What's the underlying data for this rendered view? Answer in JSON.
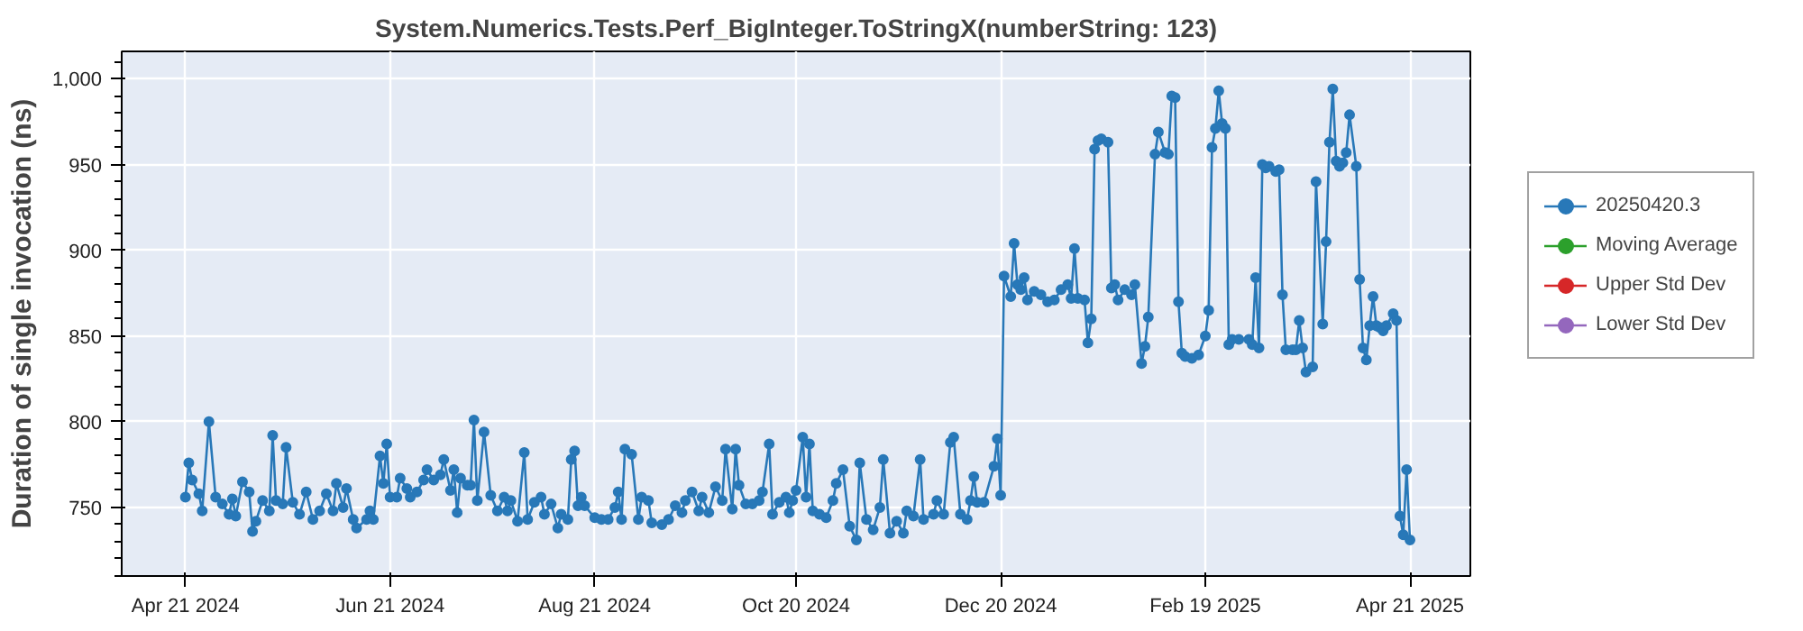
{
  "chart_data": {
    "type": "line",
    "title": "System.Numerics.Tests.Perf_BigInteger.ToStringX(numberString: 123)",
    "ylabel": "Duration of single invocation (ns)",
    "x": [
      "2024-04-21",
      "2024-04-22",
      "2024-04-23",
      "2024-04-25",
      "2024-04-26",
      "2024-04-28",
      "2024-04-30",
      "2024-05-02",
      "2024-05-04",
      "2024-05-05",
      "2024-05-06",
      "2024-05-08",
      "2024-05-10",
      "2024-05-11",
      "2024-05-12",
      "2024-05-14",
      "2024-05-16",
      "2024-05-17",
      "2024-05-18",
      "2024-05-20",
      "2024-05-21",
      "2024-05-23",
      "2024-05-25",
      "2024-05-27",
      "2024-05-29",
      "2024-05-31",
      "2024-06-02",
      "2024-06-04",
      "2024-06-05",
      "2024-06-07",
      "2024-06-08",
      "2024-06-10",
      "2024-06-11",
      "2024-06-14",
      "2024-06-15",
      "2024-06-16",
      "2024-06-18",
      "2024-06-19",
      "2024-06-20",
      "2024-06-21",
      "2024-06-23",
      "2024-06-24",
      "2024-06-26",
      "2024-06-27",
      "2024-06-29",
      "2024-07-01",
      "2024-07-02",
      "2024-07-04",
      "2024-07-06",
      "2024-07-07",
      "2024-07-09",
      "2024-07-10",
      "2024-07-11",
      "2024-07-12",
      "2024-07-14",
      "2024-07-15",
      "2024-07-16",
      "2024-07-17",
      "2024-07-19",
      "2024-07-21",
      "2024-07-23",
      "2024-07-25",
      "2024-07-26",
      "2024-07-27",
      "2024-07-29",
      "2024-07-31",
      "2024-08-01",
      "2024-08-03",
      "2024-08-05",
      "2024-08-06",
      "2024-08-08",
      "2024-08-10",
      "2024-08-11",
      "2024-08-13",
      "2024-08-14",
      "2024-08-15",
      "2024-08-16",
      "2024-08-17",
      "2024-08-18",
      "2024-08-21",
      "2024-08-23",
      "2024-08-25",
      "2024-08-27",
      "2024-08-28",
      "2024-08-29",
      "2024-08-30",
      "2024-09-01",
      "2024-09-03",
      "2024-09-04",
      "2024-09-06",
      "2024-09-07",
      "2024-09-10",
      "2024-09-12",
      "2024-09-14",
      "2024-09-16",
      "2024-09-17",
      "2024-09-19",
      "2024-09-21",
      "2024-09-22",
      "2024-09-24",
      "2024-09-26",
      "2024-09-28",
      "2024-09-29",
      "2024-10-01",
      "2024-10-02",
      "2024-10-03",
      "2024-10-05",
      "2024-10-07",
      "2024-10-09",
      "2024-10-10",
      "2024-10-12",
      "2024-10-13",
      "2024-10-15",
      "2024-10-17",
      "2024-10-18",
      "2024-10-19",
      "2024-10-20",
      "2024-10-22",
      "2024-10-23",
      "2024-10-24",
      "2024-10-25",
      "2024-10-27",
      "2024-10-29",
      "2024-10-31",
      "2024-11-01",
      "2024-11-03",
      "2024-11-05",
      "2024-11-07",
      "2024-11-08",
      "2024-11-10",
      "2024-11-12",
      "2024-11-14",
      "2024-11-15",
      "2024-11-17",
      "2024-11-19",
      "2024-11-21",
      "2024-11-22",
      "2024-11-24",
      "2024-11-26",
      "2024-11-27",
      "2024-11-30",
      "2024-12-01",
      "2024-12-03",
      "2024-12-05",
      "2024-12-06",
      "2024-12-08",
      "2024-12-10",
      "2024-12-11",
      "2024-12-12",
      "2024-12-13",
      "2024-12-15",
      "2024-12-18",
      "2024-12-19",
      "2024-12-20",
      "2024-12-21",
      "2024-12-23",
      "2024-12-24",
      "2024-12-25",
      "2024-12-26",
      "2024-12-27",
      "2024-12-28",
      "2024-12-30",
      "2025-01-01",
      "2025-01-03",
      "2025-01-05",
      "2025-01-07",
      "2025-01-09",
      "2025-01-10",
      "2025-01-11",
      "2025-01-12",
      "2025-01-14",
      "2025-01-15",
      "2025-01-16",
      "2025-01-17",
      "2025-01-18",
      "2025-01-19",
      "2025-01-21",
      "2025-01-22",
      "2025-01-23",
      "2025-01-24",
      "2025-01-26",
      "2025-01-28",
      "2025-01-29",
      "2025-01-31",
      "2025-02-01",
      "2025-02-02",
      "2025-02-04",
      "2025-02-05",
      "2025-02-07",
      "2025-02-08",
      "2025-02-09",
      "2025-02-10",
      "2025-02-11",
      "2025-02-12",
      "2025-02-13",
      "2025-02-15",
      "2025-02-17",
      "2025-02-19",
      "2025-02-20",
      "2025-02-21",
      "2025-02-22",
      "2025-02-23",
      "2025-02-24",
      "2025-02-25",
      "2025-02-26",
      "2025-02-27",
      "2025-03-01",
      "2025-03-04",
      "2025-03-05",
      "2025-03-06",
      "2025-03-07",
      "2025-03-08",
      "2025-03-09",
      "2025-03-10",
      "2025-03-12",
      "2025-03-13",
      "2025-03-14",
      "2025-03-15",
      "2025-03-17",
      "2025-03-18",
      "2025-03-19",
      "2025-03-20",
      "2025-03-21",
      "2025-03-23",
      "2025-03-24",
      "2025-03-26",
      "2025-03-27",
      "2025-03-28",
      "2025-03-29",
      "2025-03-30",
      "2025-03-31",
      "2025-04-01",
      "2025-04-02",
      "2025-04-03",
      "2025-04-05",
      "2025-04-06",
      "2025-04-07",
      "2025-04-08",
      "2025-04-09",
      "2025-04-10",
      "2025-04-11",
      "2025-04-12",
      "2025-04-13",
      "2025-04-14",
      "2025-04-16",
      "2025-04-17",
      "2025-04-18",
      "2025-04-19",
      "2025-04-20",
      "2025-04-21"
    ],
    "series": [
      {
        "name": "20250420.3",
        "color": "#2878b8",
        "values": [
          756,
          776,
          766,
          758,
          748,
          800,
          756,
          752,
          746,
          755,
          745,
          765,
          759,
          736,
          742,
          754,
          748,
          792,
          754,
          752,
          785,
          753,
          746,
          759,
          743,
          748,
          758,
          748,
          764,
          750,
          761,
          743,
          738,
          743,
          748,
          743,
          780,
          764,
          787,
          756,
          756,
          767,
          761,
          756,
          759,
          766,
          772,
          766,
          769,
          778,
          760,
          772,
          747,
          767,
          763,
          763,
          801,
          754,
          794,
          757,
          748,
          756,
          748,
          754,
          742,
          782,
          743,
          753,
          756,
          746,
          752,
          738,
          746,
          743,
          778,
          783,
          751,
          756,
          751,
          744,
          743,
          743,
          750,
          759,
          743,
          784,
          781,
          743,
          756,
          754,
          741,
          740,
          743,
          751,
          747,
          754,
          759,
          748,
          756,
          747,
          762,
          754,
          784,
          749,
          784,
          763,
          752,
          752,
          754,
          759,
          787,
          746,
          753,
          756,
          747,
          754,
          760,
          791,
          756,
          787,
          748,
          746,
          744,
          754,
          764,
          772,
          739,
          731,
          776,
          743,
          737,
          750,
          778,
          735,
          742,
          735,
          748,
          745,
          778,
          743,
          746,
          754,
          746,
          788,
          791,
          746,
          743,
          754,
          768,
          753,
          753,
          774,
          790,
          757,
          885,
          873,
          904,
          880,
          877,
          884,
          871,
          876,
          874,
          870,
          871,
          877,
          880,
          872,
          901,
          872,
          871,
          846,
          860,
          959,
          964,
          965,
          963,
          878,
          880,
          871,
          877,
          874,
          880,
          834,
          844,
          861,
          956,
          969,
          957,
          956,
          990,
          989,
          870,
          840,
          838,
          837,
          839,
          850,
          865,
          960,
          971,
          993,
          974,
          971,
          845,
          848,
          848,
          848,
          845,
          884,
          843,
          950,
          948,
          949,
          946,
          947,
          874,
          842,
          842,
          842,
          859,
          843,
          829,
          832,
          940,
          857,
          905,
          963,
          994,
          952,
          949,
          951,
          957,
          979,
          949,
          883,
          843,
          836,
          856,
          873,
          856,
          855,
          853,
          856,
          863,
          859,
          745,
          734,
          772,
          731
        ]
      },
      {
        "name": "Moving Average",
        "color": "#2ca02c",
        "values": [
          null,
          null,
          null,
          null,
          null,
          null,
          null,
          null,
          null,
          null,
          null,
          null,
          null,
          null,
          null,
          null,
          null,
          null,
          null,
          null,
          null,
          null,
          null,
          null,
          null,
          null,
          null,
          null,
          null,
          null,
          null,
          null,
          null,
          null,
          null,
          null,
          null,
          null,
          null,
          null,
          null,
          null,
          null,
          null,
          null,
          null,
          null,
          null,
          null,
          null,
          null,
          null,
          null,
          null,
          null,
          null,
          null,
          null,
          null,
          null,
          null,
          null,
          null,
          null,
          null,
          null,
          null,
          null,
          null,
          null,
          null,
          null,
          null,
          null,
          null,
          null,
          null,
          null,
          null,
          null,
          null,
          null,
          null,
          null,
          null,
          null,
          null,
          null,
          null,
          null,
          null,
          null,
          null,
          null,
          null,
          null,
          null,
          null,
          null,
          null,
          null,
          null,
          null,
          null,
          null,
          null,
          null,
          null,
          null,
          null,
          null,
          null,
          null,
          null,
          null,
          null,
          null,
          null,
          null,
          null,
          null,
          null,
          null,
          null,
          null,
          null,
          null,
          null,
          null,
          null,
          null,
          null,
          null,
          null,
          null,
          null,
          null,
          null,
          null,
          null,
          null,
          null,
          null,
          null,
          null,
          null,
          null,
          null,
          null,
          null,
          null,
          null,
          null,
          null,
          null,
          null,
          null,
          null,
          null,
          null,
          null,
          null,
          null,
          null,
          null,
          null,
          null,
          null,
          null,
          null,
          null,
          null,
          null,
          null,
          null,
          null,
          null,
          null,
          null,
          null,
          null,
          null,
          null,
          null,
          null,
          null,
          null,
          null,
          null,
          null,
          null,
          null,
          null,
          null,
          null,
          null,
          null,
          null,
          null,
          null,
          null,
          null,
          null,
          null,
          null,
          null,
          null,
          null,
          null,
          null,
          null,
          null,
          null,
          null,
          null,
          null,
          null,
          null,
          null,
          null,
          null,
          null,
          null,
          null,
          null,
          null,
          null,
          null,
          null,
          null,
          null,
          null,
          null,
          null,
          null,
          null,
          null,
          null,
          null,
          null,
          null,
          null,
          null,
          null,
          null,
          null,
          null,
          null,
          null,
          null
        ]
      },
      {
        "name": "Upper Std Dev",
        "color": "#d62728",
        "values": [
          null,
          null,
          null,
          null,
          null,
          null,
          null,
          null,
          null,
          null,
          null,
          null,
          null,
          null,
          null,
          null,
          null,
          null,
          null,
          null,
          null,
          null,
          null,
          null,
          null,
          null,
          null,
          null,
          null,
          null,
          null,
          null,
          null,
          null,
          null,
          null,
          null,
          null,
          null,
          null,
          null,
          null,
          null,
          null,
          null,
          null,
          null,
          null,
          null,
          null,
          null,
          null,
          null,
          null,
          null,
          null,
          null,
          null,
          null,
          null,
          null,
          null,
          null,
          null,
          null,
          null,
          null,
          null,
          null,
          null,
          null,
          null,
          null,
          null,
          null,
          null,
          null,
          null,
          null,
          null,
          null,
          null,
          null,
          null,
          null,
          null,
          null,
          null,
          null,
          null,
          null,
          null,
          null,
          null,
          null,
          null,
          null,
          null,
          null,
          null,
          null,
          null,
          null,
          null,
          null,
          null,
          null,
          null,
          null,
          null,
          null,
          null,
          null,
          null,
          null,
          null,
          null,
          null,
          null,
          null,
          null,
          null,
          null,
          null,
          null,
          null,
          null,
          null,
          null,
          null,
          null,
          null,
          null,
          null,
          null,
          null,
          null,
          null,
          null,
          null,
          null,
          null,
          null,
          null,
          null,
          null,
          null,
          null,
          null,
          null,
          null,
          null,
          null,
          null,
          null,
          null,
          null,
          null,
          null,
          null,
          null,
          null,
          null,
          null,
          null,
          null,
          null,
          null,
          null,
          null,
          null,
          null,
          null,
          null,
          null,
          null,
          null,
          null,
          null,
          null,
          null,
          null,
          null,
          null,
          null,
          null,
          null,
          null,
          null,
          null,
          null,
          null,
          null,
          null,
          null,
          null,
          null,
          null,
          null,
          null,
          null,
          null,
          null,
          null,
          null,
          null,
          null,
          null,
          null,
          null,
          null,
          null,
          null,
          null,
          null,
          null,
          null,
          null,
          null,
          null,
          null,
          null,
          null,
          null,
          null,
          null,
          null,
          null,
          null,
          null,
          null,
          null,
          null,
          null,
          null,
          null,
          null,
          null,
          null,
          null,
          null,
          null,
          null,
          null,
          null,
          null,
          null,
          null,
          null,
          null
        ]
      },
      {
        "name": "Lower Std Dev",
        "color": "#9467bd",
        "values": [
          null,
          null,
          null,
          null,
          null,
          null,
          null,
          null,
          null,
          null,
          null,
          null,
          null,
          null,
          null,
          null,
          null,
          null,
          null,
          null,
          null,
          null,
          null,
          null,
          null,
          null,
          null,
          null,
          null,
          null,
          null,
          null,
          null,
          null,
          null,
          null,
          null,
          null,
          null,
          null,
          null,
          null,
          null,
          null,
          null,
          null,
          null,
          null,
          null,
          null,
          null,
          null,
          null,
          null,
          null,
          null,
          null,
          null,
          null,
          null,
          null,
          null,
          null,
          null,
          null,
          null,
          null,
          null,
          null,
          null,
          null,
          null,
          null,
          null,
          null,
          null,
          null,
          null,
          null,
          null,
          null,
          null,
          null,
          null,
          null,
          null,
          null,
          null,
          null,
          null,
          null,
          null,
          null,
          null,
          null,
          null,
          null,
          null,
          null,
          null,
          null,
          null,
          null,
          null,
          null,
          null,
          null,
          null,
          null,
          null,
          null,
          null,
          null,
          null,
          null,
          null,
          null,
          null,
          null,
          null,
          null,
          null,
          null,
          null,
          null,
          null,
          null,
          null,
          null,
          null,
          null,
          null,
          null,
          null,
          null,
          null,
          null,
          null,
          null,
          null,
          null,
          null,
          null,
          null,
          null,
          null,
          null,
          null,
          null,
          null,
          null,
          null,
          null,
          null,
          null,
          null,
          null,
          null,
          null,
          null,
          null,
          null,
          null,
          null,
          null,
          null,
          null,
          null,
          null,
          null,
          null,
          null,
          null,
          null,
          null,
          null,
          null,
          null,
          null,
          null,
          null,
          null,
          null,
          null,
          null,
          null,
          null,
          null,
          null,
          null,
          null,
          null,
          null,
          null,
          null,
          null,
          null,
          null,
          null,
          null,
          null,
          null,
          null,
          null,
          null,
          null,
          null,
          null,
          null,
          null,
          null,
          null,
          null,
          null,
          null,
          null,
          null,
          null,
          null,
          null,
          null,
          null,
          null,
          null,
          null,
          null,
          null,
          null,
          null,
          null,
          null,
          null,
          null,
          null,
          null,
          null,
          null,
          null,
          null,
          null,
          null,
          null,
          null,
          null,
          null,
          null,
          null,
          null,
          null,
          null
        ]
      }
    ],
    "xlim": [
      "2024-04-02",
      "2025-05-09"
    ],
    "xticks": [
      {
        "value": "2024-04-21",
        "label": "Apr 21 2024"
      },
      {
        "value": "2024-06-21",
        "label": "Jun 21 2024"
      },
      {
        "value": "2024-08-21",
        "label": "Aug 21 2024"
      },
      {
        "value": "2024-10-20",
        "label": "Oct 20 2024"
      },
      {
        "value": "2024-12-20",
        "label": "Dec 20 2024"
      },
      {
        "value": "2025-02-19",
        "label": "Feb 19 2025"
      },
      {
        "value": "2025-04-21",
        "label": "Apr 21 2025"
      }
    ],
    "ylim": [
      710,
      1016
    ],
    "yticks": [
      750,
      800,
      850,
      900,
      950,
      {
        "value": 1000,
        "label": "1,000"
      }
    ],
    "grid": true,
    "legend": "right",
    "marker": "circle",
    "line_style": "solid"
  }
}
